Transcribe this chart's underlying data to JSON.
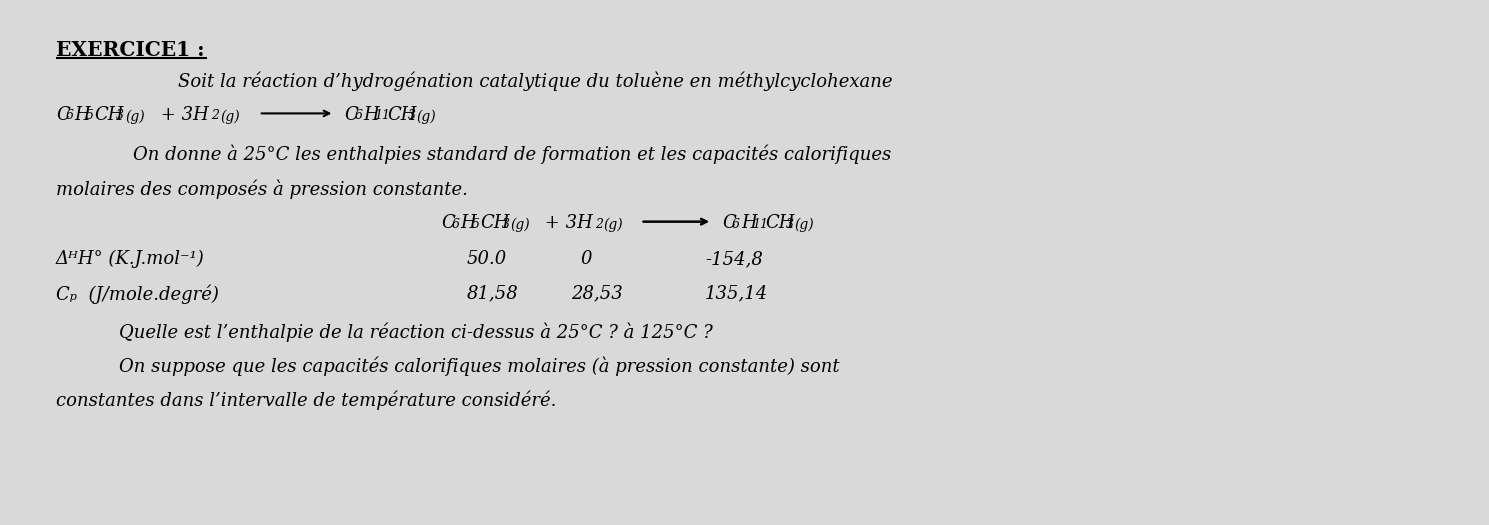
{
  "bg_color": "#d9d9d9",
  "title": "EXERCICE1 :",
  "line1": "Soit la réaction d’hydrogénation catalytique du toluène en méthylcyclohexane",
  "line3": "On donne à 25°C les enthalpies standard de formation et les capacités calorifiques",
  "line4": "molaires des composés à pression constante.",
  "dH_label": "ΔᴴH° (K.J.mol⁻¹)",
  "dH_values": [
    "50.0",
    "0",
    "-154,8"
  ],
  "Cp_label": "Cₚ  (J/mole.degré)",
  "Cp_values": [
    "81,58",
    "28,53",
    "135,14"
  ],
  "question1": "Quelle est l’enthalpie de la réaction ci-dessus à 25°C ? à 125°C ?",
  "question2": "On suppose que les capacités calorifiques molaires (à pression constante) sont",
  "question3": "constantes dans l’intervalle de température considéré."
}
